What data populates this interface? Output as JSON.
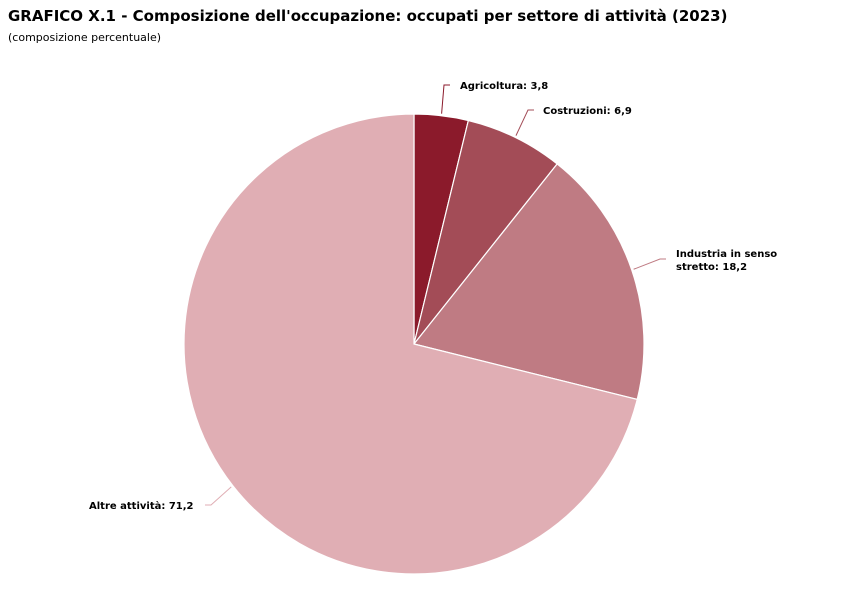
{
  "chart_data": {
    "type": "pie",
    "title": "GRAFICO X.1 - Composizione dell'occupazione: occupati per settore di attività (2023)",
    "subtitle": "(composizione percentuale)",
    "slices": [
      {
        "name": "Agricoltura",
        "value": 3.8,
        "label_lines": [
          "Agricoltura: 3,8"
        ],
        "color": "#8b1a2b"
      },
      {
        "name": "Costruzioni",
        "value": 6.9,
        "label_lines": [
          "Costruzioni: 6,9"
        ],
        "color": "#a34c57"
      },
      {
        "name": "Industria in senso stretto",
        "value": 18.2,
        "label_lines": [
          "Industria in senso",
          "stretto: 18,2"
        ],
        "color": "#bf7b83"
      },
      {
        "name": "Altre attività",
        "value": 71.2,
        "label_lines": [
          "Altre attività: 71,2"
        ],
        "color": "#e0aeb4"
      }
    ],
    "start_angle": "12 o'clock",
    "direction": "clockwise",
    "legend": "none"
  }
}
